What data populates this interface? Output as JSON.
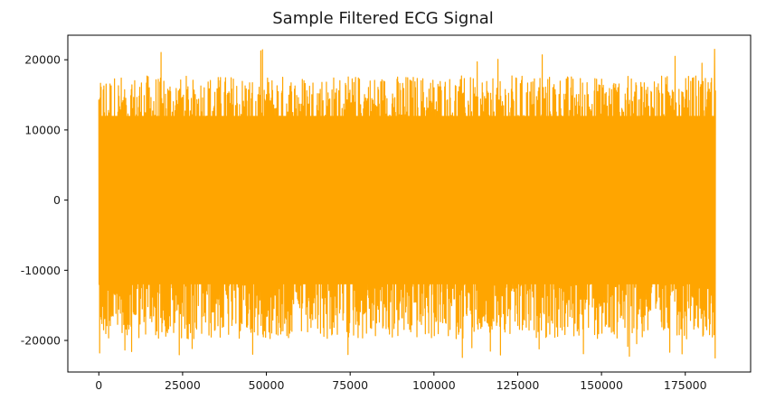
{
  "chart_data": {
    "type": "line",
    "title": "Sample Filtered ECG Signal",
    "xlabel": "",
    "ylabel": "",
    "xlim": [
      -9250,
      194500
    ],
    "ylim": [
      -24500,
      23500
    ],
    "x_ticks": [
      0,
      25000,
      50000,
      75000,
      100000,
      125000,
      150000,
      175000
    ],
    "y_ticks": [
      -20000,
      -10000,
      0,
      10000,
      20000
    ],
    "grid": false,
    "legend": "none",
    "series": [
      {
        "color": "#ffa500",
        "x_range": [
          0,
          184000
        ],
        "approx_upper_envelope": 17000,
        "approx_lower_envelope": -19000,
        "max_value": 21500,
        "min_value": -22500,
        "approx_dense_band": [
          -12000,
          12000
        ]
      }
    ]
  }
}
